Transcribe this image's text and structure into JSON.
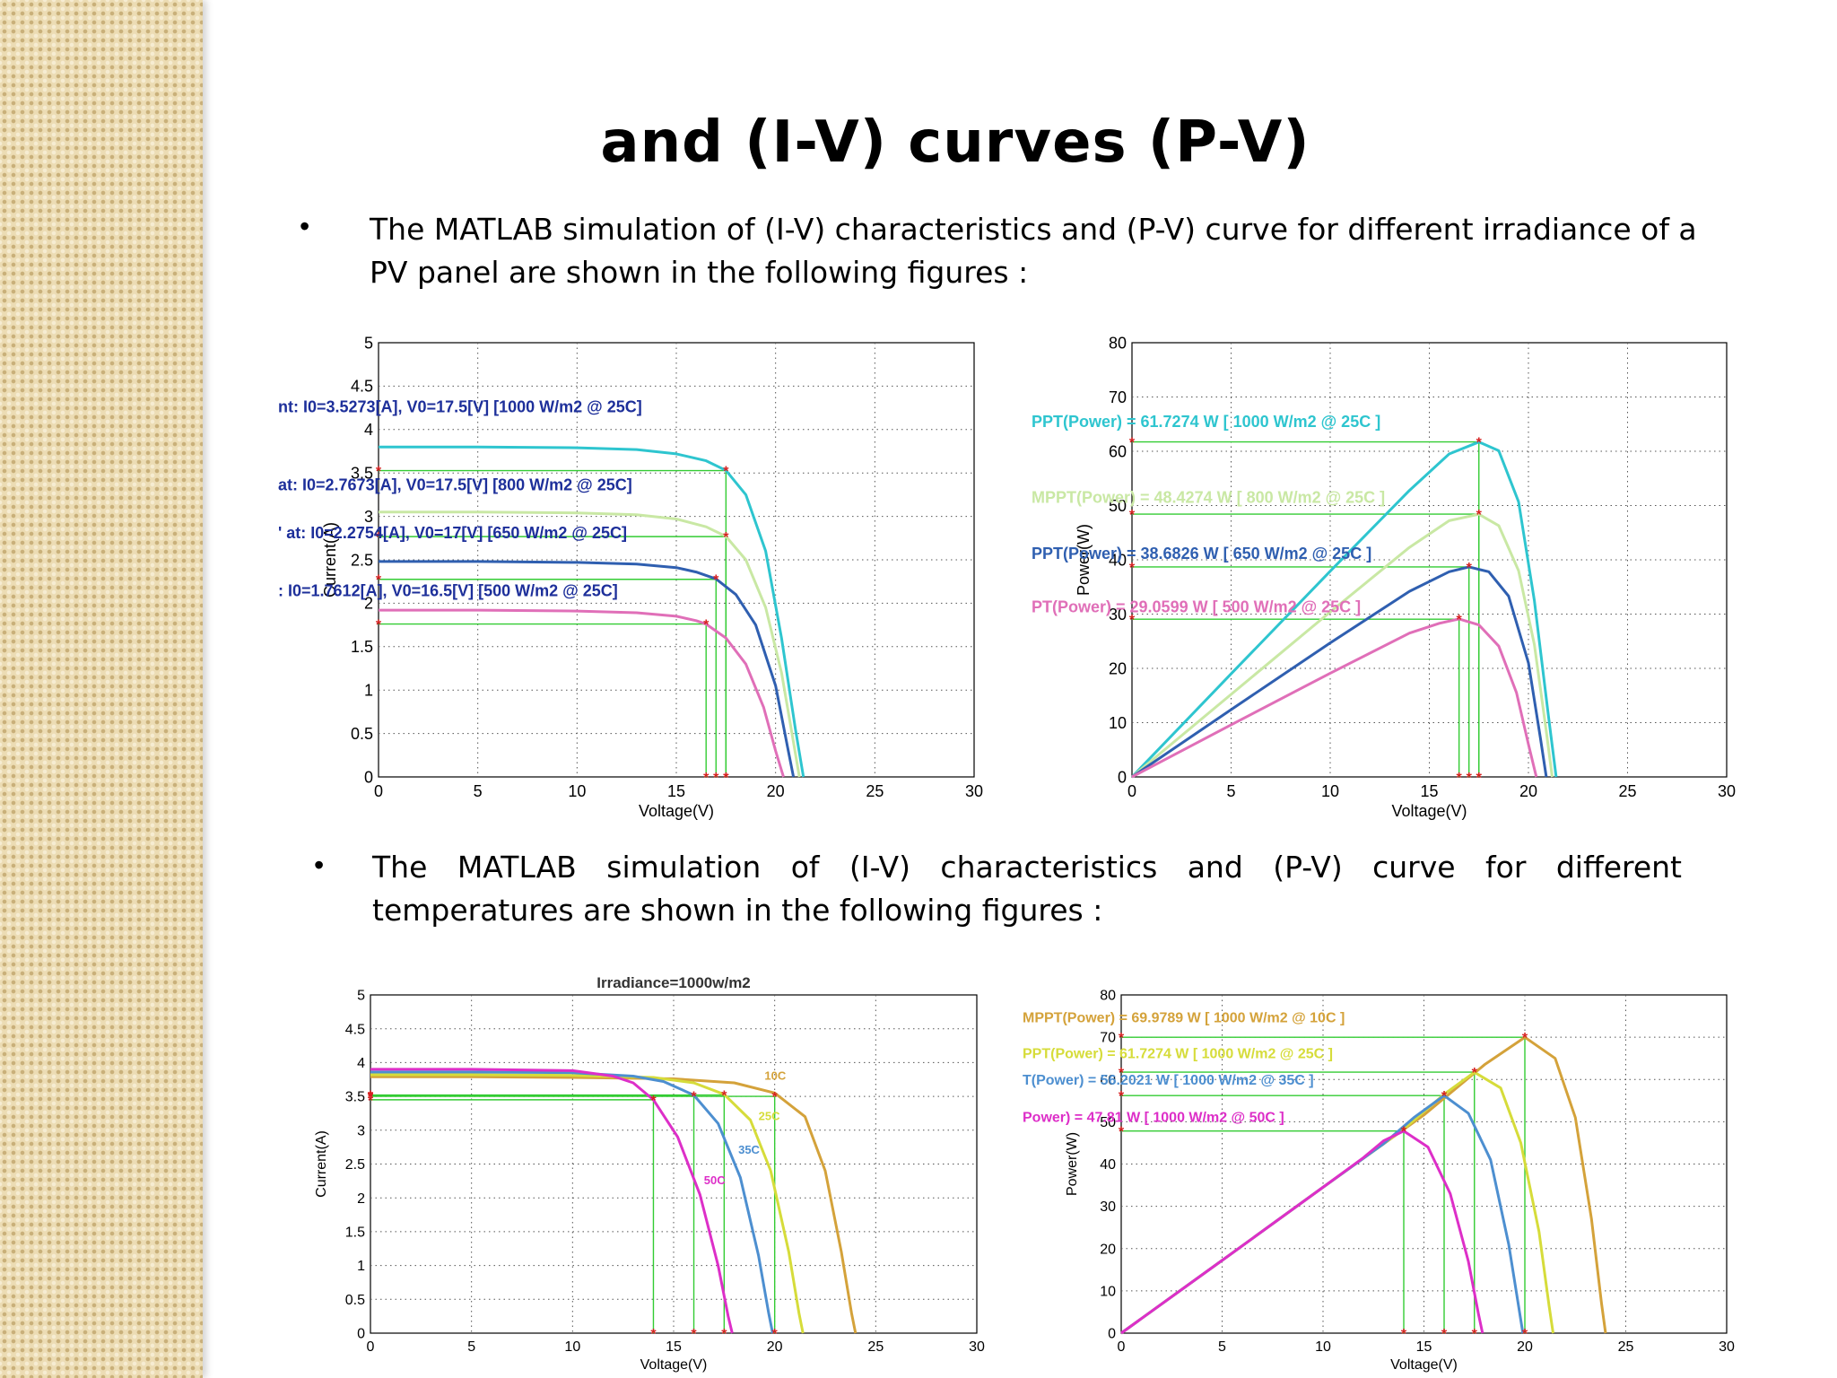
{
  "slide": {
    "title": "and (I-V) curves (P-V)",
    "bullet1": "The MATLAB simulation of (I-V) characteristics and (P-V) curve for different irradiance of a PV panel are shown in the following figures :",
    "bullet2_line1": "The MATLAB simulation of (I-V) characteristics and (P-V) curve for different",
    "bullet2_line2": "temperatures are shown in the following figures :",
    "bullet_symbol": "•"
  },
  "chart_data": [
    {
      "id": "iv-irradiance",
      "type": "line",
      "title": "",
      "xlabel": "Voltage(V)",
      "ylabel": "Current(A)",
      "xlim": [
        0,
        30
      ],
      "ylim": [
        0,
        5
      ],
      "xticks": [
        0,
        5,
        10,
        15,
        20,
        25,
        30
      ],
      "yticks": [
        0,
        0.5,
        1,
        1.5,
        2,
        2.5,
        3,
        3.5,
        4,
        4.5,
        5
      ],
      "grid": true,
      "series": [
        {
          "color": "#2ec5cf",
          "x": [
            0,
            5,
            10,
            13,
            15,
            16.5,
            17.5,
            18.5,
            19.5,
            20.3,
            21.0,
            21.4
          ],
          "y": [
            3.8,
            3.8,
            3.79,
            3.77,
            3.72,
            3.64,
            3.53,
            3.25,
            2.6,
            1.6,
            0.55,
            0
          ]
        },
        {
          "color": "#c9e8a4",
          "x": [
            0,
            5,
            10,
            13,
            15,
            16.5,
            17.5,
            18.5,
            19.5,
            20.3,
            20.9,
            21.2
          ],
          "y": [
            3.05,
            3.05,
            3.04,
            3.02,
            2.97,
            2.88,
            2.77,
            2.5,
            1.95,
            1.2,
            0.4,
            0
          ]
        },
        {
          "color": "#2f5fb0",
          "x": [
            0,
            5,
            10,
            13,
            15,
            16,
            17,
            18,
            19,
            20,
            20.6,
            20.9
          ],
          "y": [
            2.48,
            2.48,
            2.47,
            2.45,
            2.41,
            2.36,
            2.28,
            2.1,
            1.75,
            1.05,
            0.35,
            0
          ]
        },
        {
          "color": "#e06fb8",
          "x": [
            0,
            5,
            10,
            13,
            15,
            16,
            16.5,
            17.5,
            18.5,
            19.4,
            20.0,
            20.4
          ],
          "y": [
            1.92,
            1.92,
            1.91,
            1.89,
            1.85,
            1.8,
            1.76,
            1.6,
            1.3,
            0.8,
            0.3,
            0
          ]
        }
      ],
      "mpp": [
        {
          "v": 17.5,
          "i": 3.5273
        },
        {
          "v": 17.5,
          "i": 2.7673
        },
        {
          "v": 17,
          "i": 2.2754
        },
        {
          "v": 16.5,
          "i": 1.7612
        }
      ],
      "annotations": [
        {
          "text": "nt: I0=3.5273[A],  V0=17.5[V]  [1000 W/m2  @ 25C]",
          "y": 4.2
        },
        {
          "text": "at: I0=2.7673[A],  V0=17.5[V]  [800 W/m2  @ 25C]",
          "y": 3.3
        },
        {
          "text": "' at: I0=2.2754[A],  V0=17[V]  [650 W/m2  @ 25C]",
          "y": 2.75
        },
        {
          "text": ": I0=1.7612[A],  V0=16.5[V]  [500 W/m2  @ 25C]",
          "y": 2.08
        }
      ]
    },
    {
      "id": "pv-irradiance",
      "type": "line",
      "title": "",
      "xlabel": "Voltage(V)",
      "ylabel": "Power(W)",
      "xlim": [
        0,
        30
      ],
      "ylim": [
        0,
        80
      ],
      "xticks": [
        0,
        5,
        10,
        15,
        20,
        25,
        30
      ],
      "yticks": [
        0,
        10,
        20,
        30,
        40,
        50,
        60,
        70,
        80
      ],
      "grid": true,
      "series": [
        {
          "color": "#2ec5cf",
          "x": [
            0,
            5,
            10,
            14,
            16,
            17.5,
            18.5,
            19.5,
            20.3,
            21.0,
            21.4
          ],
          "y": [
            0,
            19,
            37.9,
            52.8,
            59.5,
            61.7,
            60.1,
            50.7,
            32.5,
            11.5,
            0
          ]
        },
        {
          "color": "#c9e8a4",
          "x": [
            0,
            5,
            10,
            14,
            16,
            17.5,
            18.5,
            19.5,
            20.3,
            20.9,
            21.2
          ],
          "y": [
            0,
            15.2,
            30.4,
            42.3,
            47.2,
            48.4,
            46.3,
            38,
            24.4,
            8.4,
            0
          ]
        },
        {
          "color": "#2f5fb0",
          "x": [
            0,
            5,
            10,
            14,
            16,
            17,
            18,
            19,
            20,
            20.6,
            20.9
          ],
          "y": [
            0,
            12.4,
            24.7,
            34.2,
            37.8,
            38.7,
            37.8,
            33.3,
            21,
            7.2,
            0
          ]
        },
        {
          "color": "#e06fb8",
          "x": [
            0,
            5,
            10,
            14,
            15.5,
            16.5,
            17.5,
            18.5,
            19.4,
            20.0,
            20.4
          ],
          "y": [
            0,
            9.6,
            19.1,
            26.5,
            28.3,
            29.1,
            28,
            24.1,
            15.5,
            6,
            0
          ]
        }
      ],
      "mpp": [
        {
          "v": 17.5,
          "p": 61.7274
        },
        {
          "v": 17.5,
          "p": 48.4274
        },
        {
          "v": 17,
          "p": 38.6826
        },
        {
          "v": 16.5,
          "p": 29.0599
        }
      ],
      "annotations": [
        {
          "text": "PPT(Power) = 61.7274 W   [ 1000 W/m2  @ 25C  ]",
          "y": 64.5,
          "color": "#2ec5cf"
        },
        {
          "text": "MPPT(Power) = 48.4274 W  [ 800 W/m2  @ 25C  ]",
          "y": 50.5,
          "color": "#c9e8a4"
        },
        {
          "text": "PPT(Power) = 38.6826 W   [ 650 W/m2  @ 25C  ]",
          "y": 40.2,
          "color": "#2f5fb0"
        },
        {
          "text": "PT(Power) = 29.0599 W   [ 500 W/m2  @ 25C  ]",
          "y": 30.3,
          "color": "#e06fb8"
        }
      ]
    },
    {
      "id": "iv-temperature",
      "type": "line",
      "title": "Irradiance=1000w/m2",
      "xlabel": "Voltage(V)",
      "ylabel": "Current(A)",
      "xlim": [
        0,
        30
      ],
      "ylim": [
        0,
        5
      ],
      "xticks": [
        0,
        5,
        10,
        15,
        20,
        25,
        30
      ],
      "yticks": [
        0,
        0.5,
        1,
        1.5,
        2,
        2.5,
        3,
        3.5,
        4,
        4.5,
        5
      ],
      "grid": true,
      "series": [
        {
          "name": "10C",
          "color": "#d4a23a",
          "x": [
            0,
            5,
            10,
            15,
            18,
            20,
            21.5,
            22.5,
            23.3,
            23.8,
            24.0
          ],
          "y": [
            3.79,
            3.79,
            3.78,
            3.76,
            3.7,
            3.55,
            3.2,
            2.4,
            1.2,
            0.3,
            0
          ]
        },
        {
          "name": "25C",
          "color": "#d6dc3a",
          "x": [
            0,
            5,
            10,
            14,
            16,
            17.5,
            18.8,
            19.8,
            20.7,
            21.2,
            21.4
          ],
          "y": [
            3.82,
            3.82,
            3.81,
            3.78,
            3.7,
            3.53,
            3.15,
            2.4,
            1.2,
            0.3,
            0
          ]
        },
        {
          "name": "35C",
          "color": "#4d8fd0",
          "x": [
            0,
            5,
            10,
            13,
            14.5,
            16,
            17.2,
            18.3,
            19.2,
            19.7,
            19.9
          ],
          "y": [
            3.86,
            3.86,
            3.85,
            3.8,
            3.72,
            3.52,
            3.1,
            2.3,
            1.15,
            0.3,
            0
          ]
        },
        {
          "name": "50C",
          "color": "#dd2fc8",
          "x": [
            0,
            5,
            10,
            12,
            13,
            14,
            15.2,
            16.3,
            17.2,
            17.7,
            17.9
          ],
          "y": [
            3.9,
            3.9,
            3.88,
            3.8,
            3.7,
            3.45,
            2.9,
            2.05,
            1.0,
            0.25,
            0
          ]
        }
      ],
      "mpp": [
        {
          "v": 20,
          "i": 3.5
        },
        {
          "v": 17.5,
          "i": 3.52
        },
        {
          "v": 16,
          "i": 3.51
        },
        {
          "v": 14,
          "i": 3.45
        }
      ],
      "curve_labels": [
        {
          "text": "10C",
          "x": 19.5,
          "y": 3.75,
          "color": "#d4a23a"
        },
        {
          "text": "25C",
          "x": 19.2,
          "y": 3.15,
          "color": "#d6dc3a"
        },
        {
          "text": "35C",
          "x": 18.2,
          "y": 2.65,
          "color": "#4d8fd0"
        },
        {
          "text": "50C",
          "x": 16.5,
          "y": 2.2,
          "color": "#dd2fc8"
        }
      ]
    },
    {
      "id": "pv-temperature",
      "type": "line",
      "title": "",
      "xlabel": "Voltage(V)",
      "ylabel": "Power(W)",
      "xlim": [
        0,
        30
      ],
      "ylim": [
        0,
        80
      ],
      "xticks": [
        0,
        5,
        10,
        15,
        20,
        25,
        30
      ],
      "yticks": [
        0,
        10,
        20,
        30,
        40,
        50,
        60,
        70,
        80
      ],
      "grid": true,
      "series": [
        {
          "name": "10C",
          "color": "#d4a23a",
          "x": [
            0,
            5,
            10,
            15,
            18,
            20,
            21.5,
            22.5,
            23.3,
            23.8,
            24.0
          ],
          "y": [
            0,
            17.2,
            34.5,
            51.6,
            63.5,
            69.98,
            65,
            51,
            27,
            7,
            0
          ]
        },
        {
          "name": "25C",
          "color": "#d6dc3a",
          "x": [
            0,
            5,
            10,
            14,
            16,
            17.5,
            18.8,
            19.8,
            20.7,
            21.2,
            21.4
          ],
          "y": [
            0,
            17.2,
            34.5,
            48.3,
            56.5,
            61.7,
            58,
            45,
            24,
            6.5,
            0
          ]
        },
        {
          "name": "35C",
          "color": "#4d8fd0",
          "x": [
            0,
            5,
            10,
            13,
            14.5,
            16,
            17.2,
            18.3,
            19.2,
            19.7,
            19.9
          ],
          "y": [
            0,
            17.2,
            34.5,
            44.8,
            51,
            56.2,
            52,
            41,
            21,
            6,
            0
          ]
        },
        {
          "name": "50C",
          "color": "#dd2fc8",
          "x": [
            0,
            5,
            10,
            12,
            13,
            14,
            15.2,
            16.3,
            17.2,
            17.7,
            17.9
          ],
          "y": [
            0,
            17.2,
            34.5,
            41.5,
            45.5,
            47.8,
            44,
            33,
            17,
            4.5,
            0
          ]
        }
      ],
      "mpp": [
        {
          "v": 20,
          "p": 69.9789
        },
        {
          "v": 17.5,
          "p": 61.7274
        },
        {
          "v": 16,
          "p": 56.2021
        },
        {
          "v": 14,
          "p": 47.81
        }
      ],
      "annotations": [
        {
          "text": "MPPT(Power) = 69.9789 W   [ 1000 W/m2  @ 10C  ]",
          "y": 73.5,
          "color": "#d4a23a"
        },
        {
          "text": "PPT(Power) = 61.7274 W   [ 1000 W/m2  @ 25C  ]",
          "y": 65,
          "color": "#d6dc3a"
        },
        {
          "text": "T(Power) = 56.2021 W   [ 1000 W/m2  @ 35C  ]",
          "y": 58.8,
          "color": "#4d8fd0"
        },
        {
          "text": "Power) = 47.81 W   [ 1000 W/m2  @ 50C  ]",
          "y": 50,
          "color": "#dd2fc8"
        }
      ]
    }
  ]
}
